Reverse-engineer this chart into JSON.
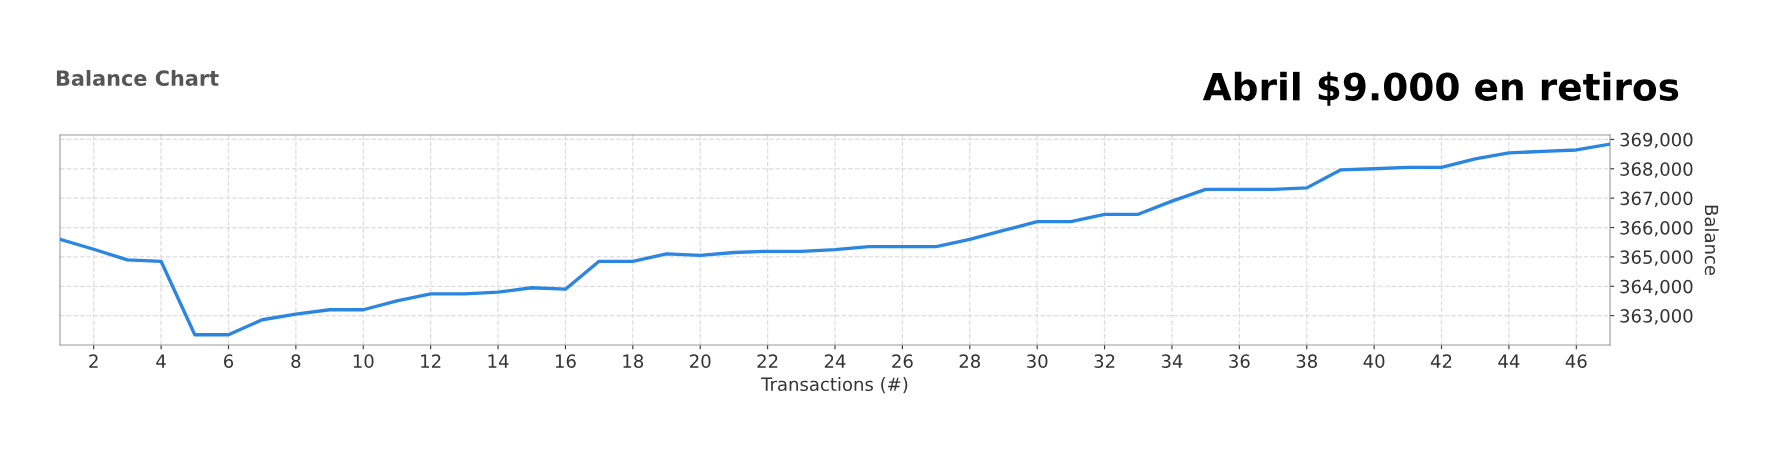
{
  "chart_data": {
    "type": "line",
    "title": "Balance Chart",
    "xlabel": "Transactions (#)",
    "ylabel": "Balance",
    "annotations": [
      "Abril $9.000 en retiros"
    ],
    "x": [
      1,
      2,
      3,
      4,
      5,
      6,
      7,
      8,
      9,
      10,
      11,
      12,
      13,
      14,
      15,
      16,
      17,
      18,
      19,
      20,
      21,
      22,
      23,
      24,
      25,
      26,
      27,
      28,
      29,
      30,
      31,
      32,
      33,
      34,
      35,
      36,
      37,
      38,
      39,
      40,
      41,
      42,
      43,
      44,
      45,
      46,
      47
    ],
    "series": [
      {
        "color": "#2a86e0",
        "values": [
          365600,
          365260,
          364900,
          364850,
          362350,
          362350,
          362860,
          363050,
          363200,
          363200,
          363500,
          363740,
          363740,
          363800,
          363950,
          363900,
          364850,
          364850,
          365100,
          365050,
          365150,
          365190,
          365190,
          365250,
          365350,
          365350,
          365350,
          365600,
          365900,
          366200,
          366200,
          366450,
          366450,
          366900,
          367300,
          367300,
          367300,
          367350,
          367960,
          368000,
          368050,
          368050,
          368340,
          368540,
          368590,
          368640,
          368840
        ]
      }
    ],
    "xlim": [
      1,
      47
    ],
    "xticks": [
      2,
      4,
      6,
      8,
      10,
      12,
      14,
      16,
      18,
      20,
      22,
      24,
      26,
      28,
      30,
      32,
      34,
      36,
      38,
      40,
      42,
      44,
      46
    ],
    "ylim": [
      362000,
      369150
    ],
    "yticks": [
      {
        "value": 363000,
        "label": "363,000"
      },
      {
        "value": 364000,
        "label": "364,000"
      },
      {
        "value": 365000,
        "label": "365,000"
      },
      {
        "value": 366000,
        "label": "366,000"
      },
      {
        "value": 367000,
        "label": "367,000"
      },
      {
        "value": 368000,
        "label": "368,000"
      },
      {
        "value": 369000,
        "label": "369,000"
      }
    ],
    "grid": true,
    "legend": false,
    "marker": "none",
    "line_style": "solid"
  }
}
